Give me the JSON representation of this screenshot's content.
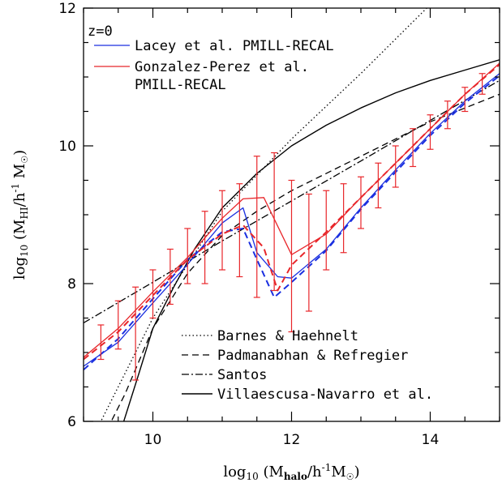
{
  "chart_data": {
    "type": "line",
    "xlim": [
      9.0,
      15.0
    ],
    "ylim": [
      6.0,
      12.0
    ],
    "x_ticks": [
      10,
      12,
      14
    ],
    "y_ticks": [
      6,
      8,
      10,
      12
    ],
    "x_minor_step": 0.5,
    "y_minor_step": 0.5,
    "grid": false,
    "xlabel": {
      "prefix": "log",
      "base": "10",
      "open": " (M",
      "sub": "halo",
      "mid": "/h",
      "sup": "-1",
      "unit": "M",
      "close": ")"
    },
    "ylabel": {
      "prefix": "log",
      "base": "10",
      "open": " (M",
      "sub": "HI",
      "mid": "/h",
      "sup": "-1",
      "unit": " M",
      "close": ")"
    },
    "annotation": "z=0",
    "legend_top": [
      {
        "series": "lacey",
        "label_lines": [
          "Lacey et al. PMILL-RECAL"
        ]
      },
      {
        "series": "gonzalez",
        "label_lines": [
          "Gonzalez-Perez et al.",
          "PMILL-RECAL"
        ]
      }
    ],
    "legend_bottom": [
      {
        "series": "barnes",
        "label": "Barnes & Haehnelt"
      },
      {
        "series": "padmanabhan",
        "label": "Padmanabhan & Refregier"
      },
      {
        "series": "santos",
        "label": "Santos"
      },
      {
        "series": "villaescusa",
        "label": "Villaescusa-Navarro et al."
      }
    ],
    "series": [
      {
        "id": "barnes",
        "color": "#000000",
        "dash": "1.5,3",
        "width": 1.3,
        "points": [
          [
            9.0,
            5.5
          ],
          [
            10.0,
            7.5
          ],
          [
            11.0,
            9.05
          ],
          [
            12.0,
            10.1
          ],
          [
            13.0,
            11.05
          ],
          [
            14.0,
            12.05
          ],
          [
            14.3,
            12.3
          ]
        ]
      },
      {
        "id": "padmanabhan",
        "color": "#000000",
        "dash": "8,5",
        "width": 1.3,
        "points": [
          [
            9.0,
            5.2
          ],
          [
            9.6,
            6.4
          ],
          [
            10.0,
            7.35
          ],
          [
            10.5,
            8.15
          ],
          [
            11.0,
            8.7
          ],
          [
            11.5,
            9.05
          ],
          [
            12.0,
            9.35
          ],
          [
            13.0,
            9.85
          ],
          [
            14.0,
            10.35
          ],
          [
            15.0,
            10.75
          ]
        ]
      },
      {
        "id": "santos",
        "color": "#000000",
        "dash": "9,3,2,3",
        "width": 1.3,
        "points": [
          [
            9.0,
            7.43
          ],
          [
            10.0,
            8.02
          ],
          [
            11.0,
            8.62
          ],
          [
            12.0,
            9.2
          ],
          [
            13.0,
            9.78
          ],
          [
            14.0,
            10.37
          ],
          [
            15.0,
            10.95
          ]
        ]
      },
      {
        "id": "villaescusa",
        "color": "#000000",
        "dash": "",
        "width": 1.4,
        "points": [
          [
            9.58,
            6.0
          ],
          [
            9.8,
            6.7
          ],
          [
            10.0,
            7.35
          ],
          [
            10.3,
            7.95
          ],
          [
            10.6,
            8.5
          ],
          [
            11.0,
            9.1
          ],
          [
            11.5,
            9.6
          ],
          [
            12.0,
            10.0
          ],
          [
            12.5,
            10.3
          ],
          [
            13.0,
            10.55
          ],
          [
            13.5,
            10.77
          ],
          [
            14.0,
            10.95
          ],
          [
            14.5,
            11.1
          ],
          [
            15.0,
            11.25
          ]
        ]
      },
      {
        "id": "lacey",
        "color": "#1a2fe0",
        "dash": "",
        "width": 1.3,
        "points": [
          [
            9.0,
            6.8
          ],
          [
            9.5,
            7.15
          ],
          [
            10.0,
            7.72
          ],
          [
            10.5,
            8.28
          ],
          [
            11.0,
            8.88
          ],
          [
            11.3,
            9.1
          ],
          [
            11.5,
            8.45
          ],
          [
            11.8,
            8.1
          ],
          [
            12.0,
            8.08
          ],
          [
            12.5,
            8.5
          ],
          [
            13.0,
            9.1
          ],
          [
            13.5,
            9.65
          ],
          [
            14.0,
            10.18
          ],
          [
            14.5,
            10.65
          ],
          [
            15.0,
            11.05
          ]
        ]
      },
      {
        "id": "lacey-alt",
        "color": "#1a2fe0",
        "dash": "8,5",
        "width": 2.0,
        "points": [
          [
            9.0,
            6.75
          ],
          [
            9.5,
            7.2
          ],
          [
            10.0,
            7.78
          ],
          [
            10.5,
            8.35
          ],
          [
            11.0,
            8.75
          ],
          [
            11.3,
            8.8
          ],
          [
            11.5,
            8.35
          ],
          [
            11.75,
            7.8
          ],
          [
            12.0,
            8.02
          ],
          [
            12.5,
            8.48
          ],
          [
            13.0,
            9.08
          ],
          [
            13.5,
            9.62
          ],
          [
            14.0,
            10.15
          ],
          [
            14.5,
            10.62
          ],
          [
            15.0,
            11.02
          ]
        ]
      },
      {
        "id": "gonzalez",
        "color": "#e8262a",
        "dash": "",
        "width": 1.3,
        "points": [
          [
            9.0,
            6.93
          ],
          [
            9.5,
            7.35
          ],
          [
            10.0,
            7.88
          ],
          [
            10.5,
            8.38
          ],
          [
            11.0,
            8.95
          ],
          [
            11.3,
            9.23
          ],
          [
            11.6,
            9.25
          ],
          [
            12.0,
            8.42
          ],
          [
            12.5,
            8.72
          ],
          [
            13.0,
            9.25
          ],
          [
            13.5,
            9.75
          ],
          [
            14.0,
            10.25
          ],
          [
            14.5,
            10.75
          ],
          [
            15.0,
            11.2
          ]
        ]
      },
      {
        "id": "gonzalez-alt",
        "color": "#e8262a",
        "dash": "8,5",
        "width": 2.0,
        "points": [
          [
            9.0,
            6.9
          ],
          [
            9.5,
            7.3
          ],
          [
            10.0,
            7.83
          ],
          [
            10.5,
            8.35
          ],
          [
            11.0,
            8.72
          ],
          [
            11.3,
            8.85
          ],
          [
            11.6,
            8.52
          ],
          [
            11.8,
            7.9
          ],
          [
            12.0,
            8.27
          ],
          [
            12.5,
            8.75
          ],
          [
            13.0,
            9.25
          ],
          [
            13.5,
            9.75
          ],
          [
            14.0,
            10.25
          ],
          [
            14.5,
            10.75
          ],
          [
            15.0,
            11.18
          ]
        ]
      }
    ],
    "error_bars": {
      "color": "#e8262a",
      "points": [
        {
          "x": 9.25,
          "y": 7.05,
          "lo": 6.9,
          "hi": 7.4
        },
        {
          "x": 9.5,
          "y": 7.4,
          "lo": 7.05,
          "hi": 7.75
        },
        {
          "x": 9.75,
          "y": 7.5,
          "lo": 6.6,
          "hi": 7.95
        },
        {
          "x": 10.0,
          "y": 7.9,
          "lo": 7.5,
          "hi": 8.2
        },
        {
          "x": 10.25,
          "y": 8.1,
          "lo": 7.7,
          "hi": 8.5
        },
        {
          "x": 10.5,
          "y": 8.4,
          "lo": 8.0,
          "hi": 8.8
        },
        {
          "x": 10.75,
          "y": 8.6,
          "lo": 8.0,
          "hi": 9.05
        },
        {
          "x": 11.0,
          "y": 8.8,
          "lo": 8.2,
          "hi": 9.35
        },
        {
          "x": 11.25,
          "y": 8.85,
          "lo": 8.1,
          "hi": 9.45
        },
        {
          "x": 11.5,
          "y": 8.7,
          "lo": 7.8,
          "hi": 9.85
        },
        {
          "x": 11.75,
          "y": 8.5,
          "lo": 7.9,
          "hi": 9.9
        },
        {
          "x": 12.0,
          "y": 8.3,
          "lo": 7.3,
          "hi": 9.5
        },
        {
          "x": 12.25,
          "y": 8.5,
          "lo": 7.6,
          "hi": 9.3
        },
        {
          "x": 12.5,
          "y": 8.7,
          "lo": 8.2,
          "hi": 9.35
        },
        {
          "x": 12.75,
          "y": 8.9,
          "lo": 8.45,
          "hi": 9.45
        },
        {
          "x": 13.0,
          "y": 9.2,
          "lo": 8.8,
          "hi": 9.55
        },
        {
          "x": 13.25,
          "y": 9.4,
          "lo": 9.1,
          "hi": 9.75
        },
        {
          "x": 13.5,
          "y": 9.7,
          "lo": 9.4,
          "hi": 10.0
        },
        {
          "x": 13.75,
          "y": 9.95,
          "lo": 9.7,
          "hi": 10.25
        },
        {
          "x": 14.0,
          "y": 10.2,
          "lo": 9.95,
          "hi": 10.45
        },
        {
          "x": 14.25,
          "y": 10.45,
          "lo": 10.25,
          "hi": 10.65
        },
        {
          "x": 14.5,
          "y": 10.7,
          "lo": 10.5,
          "hi": 10.85
        },
        {
          "x": 14.75,
          "y": 10.9,
          "lo": 10.75,
          "hi": 11.05
        }
      ]
    }
  }
}
